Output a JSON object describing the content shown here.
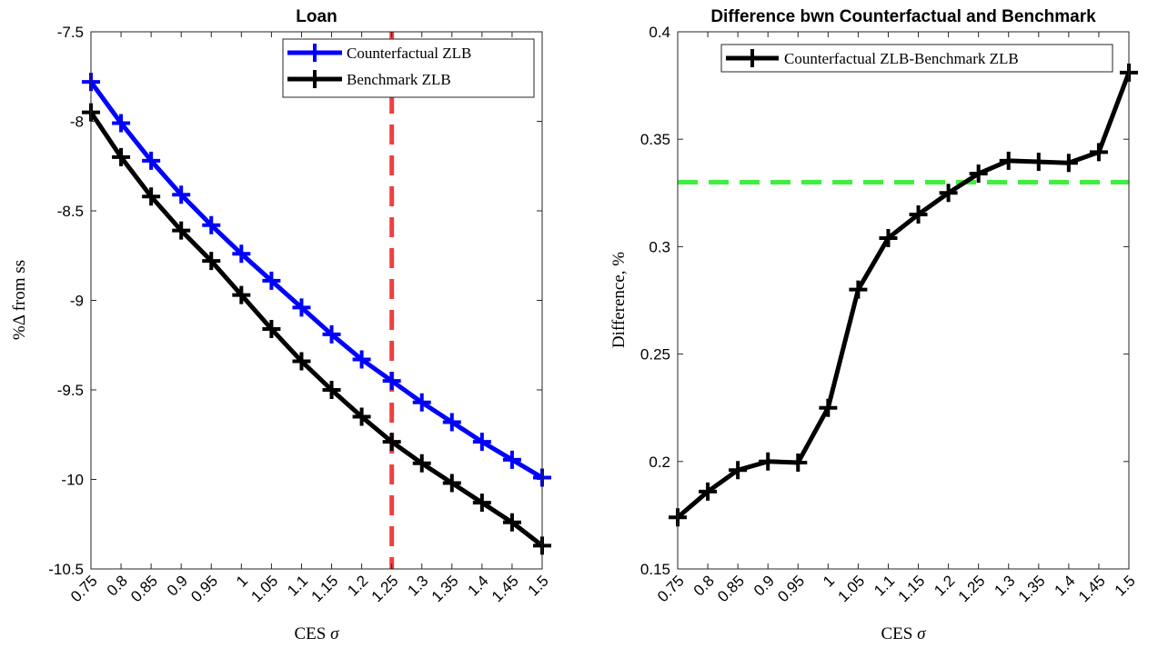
{
  "chart_data": [
    {
      "type": "line",
      "title": "Loan",
      "xlabel": "CES σ",
      "ylabel": "%Δ from ss",
      "x": [
        0.75,
        0.8,
        0.85,
        0.9,
        0.95,
        1,
        1.05,
        1.1,
        1.15,
        1.2,
        1.25,
        1.3,
        1.35,
        1.4,
        1.45,
        1.5
      ],
      "xtick_labels": [
        "0.75",
        "0.8",
        "0.85",
        "0.9",
        "0.95",
        "1",
        "1.05",
        "1.1",
        "1.15",
        "1.2",
        "1.25",
        "1.3",
        "1.35",
        "1.4",
        "1.45",
        "1.5"
      ],
      "ylim": [
        -10.5,
        -7.5
      ],
      "ytick_labels": [
        "-7.5",
        "-8",
        "-8.5",
        "-9",
        "-9.5",
        "-10",
        "-10.5"
      ],
      "yticks": [
        -7.5,
        -8,
        -8.5,
        -9,
        -9.5,
        -10,
        -10.5
      ],
      "legend_position": "top-right",
      "series": [
        {
          "name": "Counterfactual ZLB",
          "color": "#0000ff",
          "values": [
            -7.78,
            -8.01,
            -8.22,
            -8.41,
            -8.58,
            -8.74,
            -8.89,
            -9.04,
            -9.19,
            -9.33,
            -9.45,
            -9.57,
            -9.68,
            -9.79,
            -9.89,
            -9.99
          ]
        },
        {
          "name": "Benchmark ZLB",
          "color": "#000000",
          "values": [
            -7.95,
            -8.2,
            -8.42,
            -8.61,
            -8.78,
            -8.97,
            -9.16,
            -9.34,
            -9.5,
            -9.65,
            -9.79,
            -9.91,
            -10.02,
            -10.13,
            -10.24,
            -10.37
          ]
        }
      ],
      "reference_lines": [
        {
          "orientation": "vertical",
          "x": 1.25,
          "color": "#f04040",
          "style": "dashed"
        }
      ]
    },
    {
      "type": "line",
      "title": "Difference bwn Counterfactual and Benchmark",
      "xlabel": "CES σ",
      "ylabel": "Difference, %",
      "x": [
        0.75,
        0.8,
        0.85,
        0.9,
        0.95,
        1,
        1.05,
        1.1,
        1.15,
        1.2,
        1.25,
        1.3,
        1.35,
        1.4,
        1.45,
        1.5
      ],
      "xtick_labels": [
        "0.75",
        "0.8",
        "0.85",
        "0.9",
        "0.95",
        "1",
        "1.05",
        "1.1",
        "1.15",
        "1.2",
        "1.25",
        "1.3",
        "1.35",
        "1.4",
        "1.45",
        "1.5"
      ],
      "ylim": [
        0.15,
        0.4
      ],
      "ytick_labels": [
        "0.4",
        "0.35",
        "0.3",
        "0.25",
        "0.2",
        "0.15"
      ],
      "yticks": [
        0.4,
        0.35,
        0.3,
        0.25,
        0.2,
        0.15
      ],
      "legend_position": "top-right",
      "series": [
        {
          "name": "Counterfactual ZLB-Benchmark ZLB",
          "color": "#000000",
          "values": [
            0.174,
            0.186,
            0.196,
            0.2,
            0.1995,
            0.225,
            0.28,
            0.304,
            0.315,
            0.325,
            0.334,
            0.34,
            0.3395,
            0.339,
            0.344,
            0.381
          ]
        }
      ],
      "reference_lines": [
        {
          "orientation": "horizontal",
          "y": 0.33,
          "color": "#40ee40",
          "style": "dashed"
        }
      ]
    }
  ]
}
